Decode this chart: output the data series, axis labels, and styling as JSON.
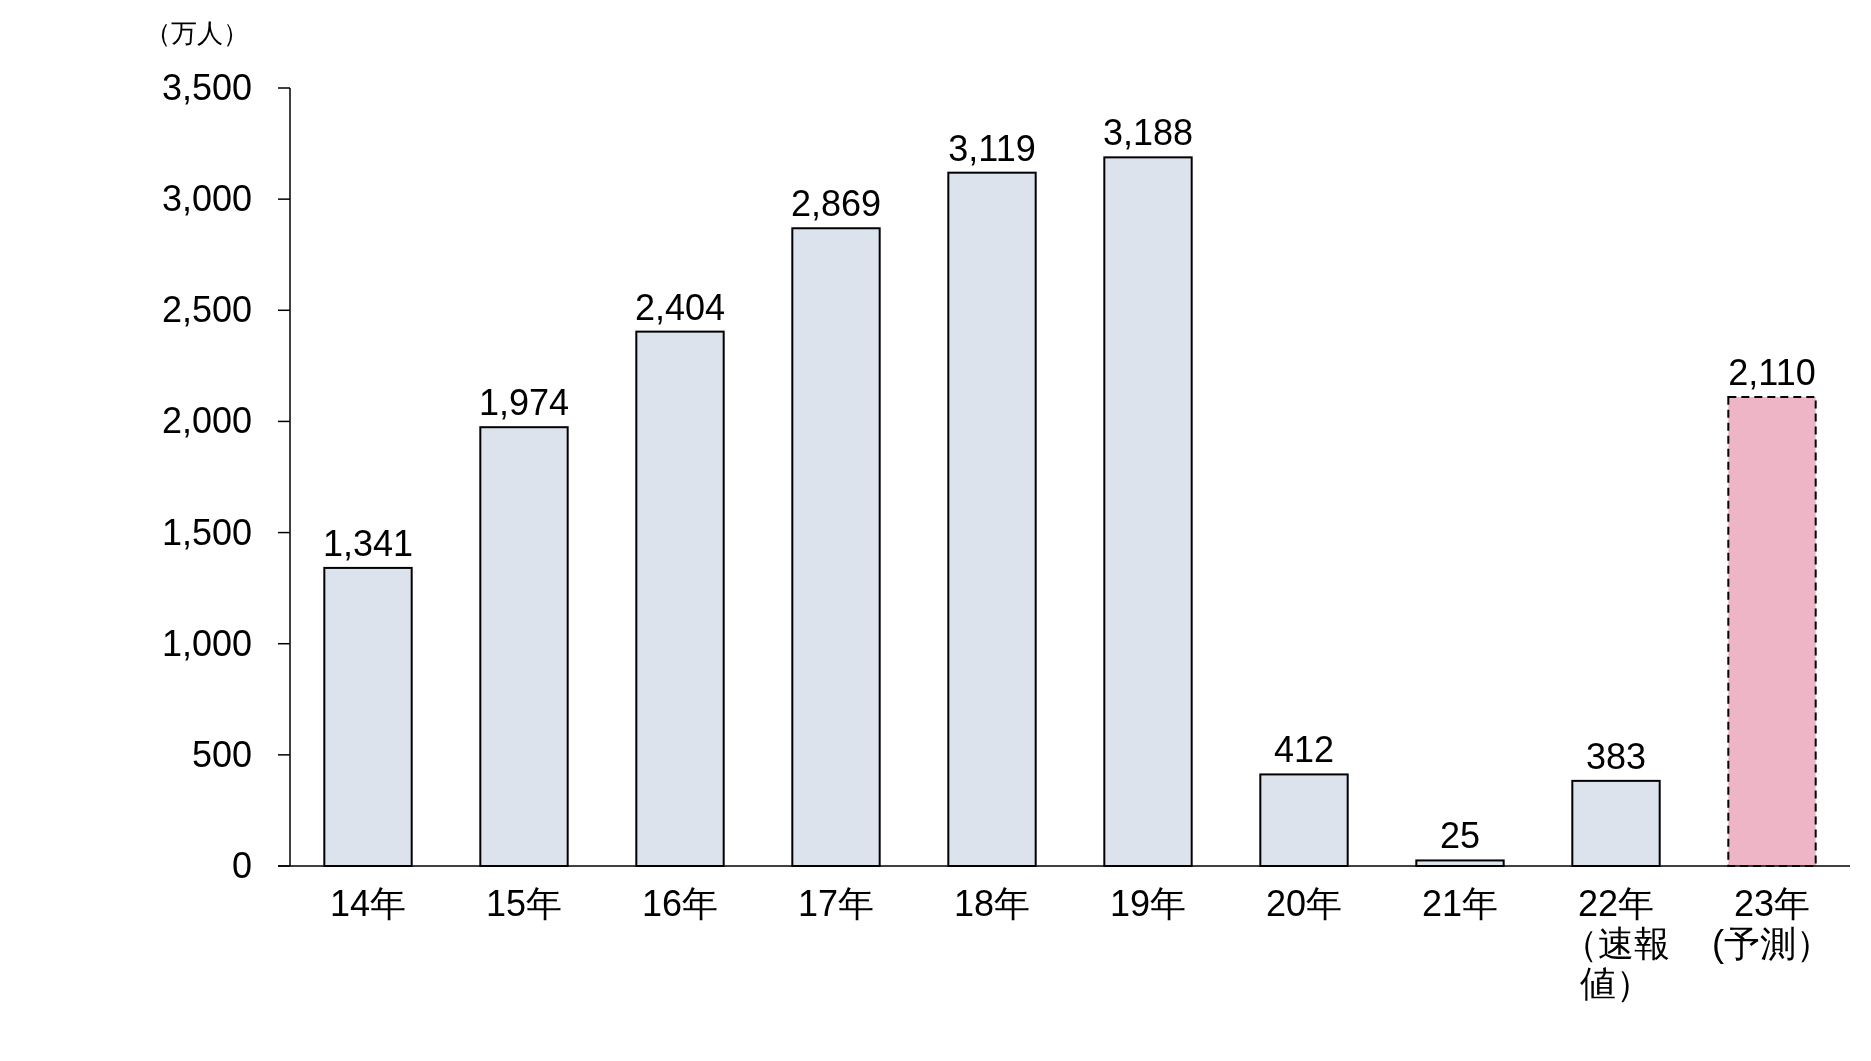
{
  "chart_data": {
    "type": "bar",
    "ylabel": "（万人）",
    "categories": [
      "14年",
      "15年",
      "16年",
      "17年",
      "18年",
      "19年",
      "20年",
      "21年",
      "22年（速報値）",
      "23年(予測）"
    ],
    "series": [
      {
        "color": "#dde3ed",
        "line_style": "solid",
        "values": [
          1341,
          1974,
          2404,
          2869,
          3119,
          3188,
          412,
          25,
          383,
          null
        ],
        "value_labels": [
          "1,341",
          "1,974",
          "2,404",
          "2,869",
          "3,119",
          "3,188",
          "412",
          "25",
          "383",
          null
        ]
      },
      {
        "color": "#eeb5c7",
        "line_style": "dashed",
        "values": [
          null,
          null,
          null,
          null,
          null,
          null,
          null,
          null,
          null,
          2110
        ],
        "value_labels": [
          null,
          null,
          null,
          null,
          null,
          null,
          null,
          null,
          null,
          "2,110"
        ]
      }
    ],
    "ylim": [
      0,
      3500
    ],
    "yticks": [
      {
        "value": 0,
        "label": "0"
      },
      {
        "value": 500,
        "label": "500"
      },
      {
        "value": 1000,
        "label": "1,000"
      },
      {
        "value": 1500,
        "label": "1,500"
      },
      {
        "value": 2000,
        "label": "2,000"
      },
      {
        "value": 2500,
        "label": "2,500"
      },
      {
        "value": 3000,
        "label": "3,000"
      },
      {
        "value": 3500,
        "label": "3,500"
      }
    ],
    "grid": false
  }
}
